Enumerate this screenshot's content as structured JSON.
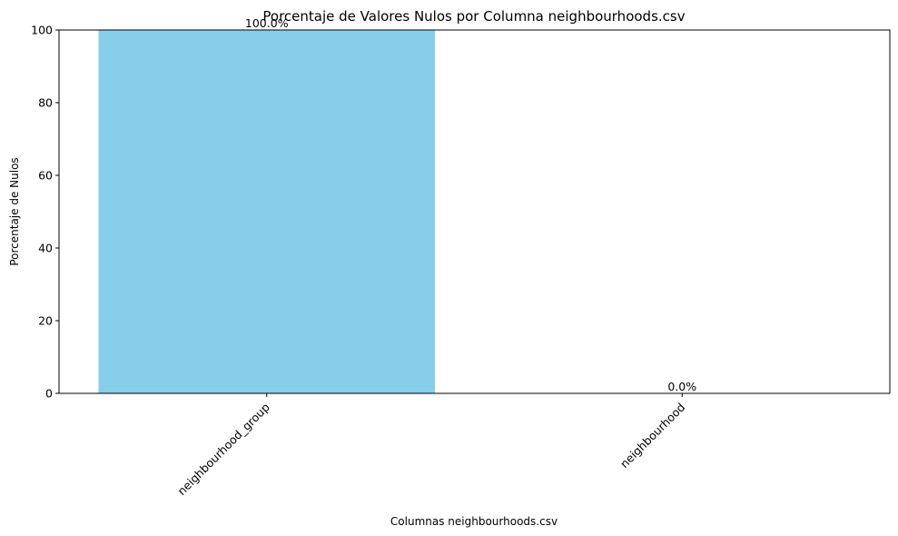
{
  "chart_data": {
    "type": "bar",
    "title": "Porcentaje de Valores Nulos por Columna neighbourhoods.csv",
    "xlabel": "Columnas neighbourhoods.csv",
    "ylabel": "Porcentaje de Nulos",
    "categories": [
      "neighbourhood_group",
      "neighbourhood"
    ],
    "values": [
      100.0,
      0.0
    ],
    "data_labels": [
      "100.0%",
      "0.0%"
    ],
    "ylim": [
      0,
      100
    ],
    "yticks": [
      0,
      20,
      40,
      60,
      80,
      100
    ],
    "ytick_labels": [
      "0",
      "20",
      "40",
      "60",
      "80",
      "100"
    ],
    "bar_color": "#87ceeb",
    "grid": false,
    "legend": "none",
    "xtick_rotation": "45 degrees"
  }
}
